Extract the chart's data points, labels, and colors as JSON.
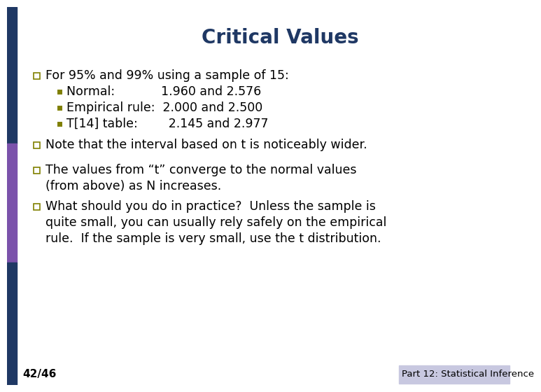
{
  "title": "Critical Values",
  "title_color": "#1F3864",
  "title_fontsize": 20,
  "bg_color": "#FFFFFF",
  "left_bar_top_color": "#1F3864",
  "left_bar_mid_color": "#7B52AB",
  "left_bar_bot_color": "#1F3864",
  "footer_bg_color": "#C8C8E0",
  "bottom_left_text": "42/46",
  "bottom_right_text": "Part 12: Statistical Inference",
  "bullet_square_outline": "#808000",
  "sub_bullet_color": "#808000",
  "text_color": "#000000",
  "bullet1": "For 95% and 99% using a sample of 15:",
  "sub1a": "Normal:",
  "sub1b": "         1.960 and 2.576",
  "sub2a": "Empirical rule:  2.000 and 2.500",
  "sub3a": "T[14] table:",
  "sub3b": "      2.145 and 2.977",
  "bullet2": "Note that the interval based on t is noticeably wider.",
  "bullet3_line1": "The values from “t” converge to the normal values",
  "bullet3_line2": "(from above) as N increases.",
  "bullet4_line1": "What should you do in practice?  Unless the sample is",
  "bullet4_line2": "quite small, you can usually rely safely on the empirical",
  "bullet4_line3": "rule.  If the sample is very small, use the t distribution."
}
